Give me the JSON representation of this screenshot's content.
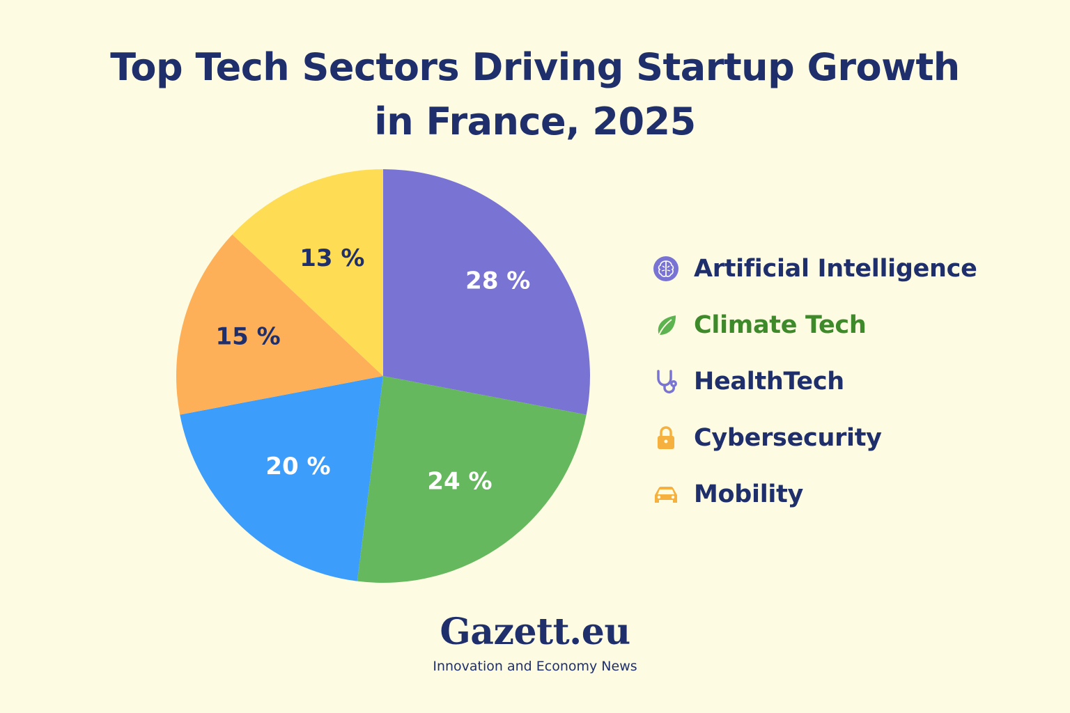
{
  "chart_data": {
    "type": "pie",
    "title_lines": [
      "Top Tech Sectors Driving Startup Growth",
      "in France, 2025"
    ],
    "slices": [
      {
        "name": "Artificial Intelligence",
        "value": 28,
        "label": "28 %",
        "color": "#7974d4",
        "label_color": "#ffffff",
        "icon": "brain-icon"
      },
      {
        "name": "Climate Tech",
        "value": 24,
        "label": "24 %",
        "color": "#66b85f",
        "label_color": "#ffffff",
        "icon": "leaf-icon"
      },
      {
        "name": "HealthTech",
        "value": 20,
        "label": "20 %",
        "color": "#3d9dfa",
        "label_color": "#ffffff",
        "icon": "stethoscope-icon"
      },
      {
        "name": "Cybersecurity",
        "value": 15,
        "label": "15 %",
        "color": "#fdb058",
        "label_color": "#1f2f6b",
        "icon": "lock-icon"
      },
      {
        "name": "Mobility",
        "value": 13,
        "label": "13 %",
        "color": "#fedd55",
        "label_color": "#1f2f6b",
        "icon": "car-icon"
      }
    ],
    "legend": [
      {
        "label": "Artificial Intelligence",
        "text_color": "#1f2f6b",
        "icon": "brain-icon",
        "icon_color": "#7974d4"
      },
      {
        "label": "Climate Tech",
        "text_color": "#3e8a2a",
        "icon": "leaf-icon",
        "icon_color": "#5cb34f"
      },
      {
        "label": "HealthTech",
        "text_color": "#1f2f6b",
        "icon": "stethoscope-icon",
        "icon_color": "#7974d4"
      },
      {
        "label": "Cybersecurity",
        "text_color": "#1f2f6b",
        "icon": "lock-icon",
        "icon_color": "#f5b03d"
      },
      {
        "label": "Mobility",
        "text_color": "#1f2f6b",
        "icon": "car-icon",
        "icon_color": "#f5b03d"
      }
    ],
    "legend_position": "right"
  },
  "brand": {
    "name": "Gazett.eu",
    "tagline": "Innovation and Economy News"
  },
  "colors": {
    "background": "#fdfbe2",
    "title": "#1f2f6b"
  }
}
